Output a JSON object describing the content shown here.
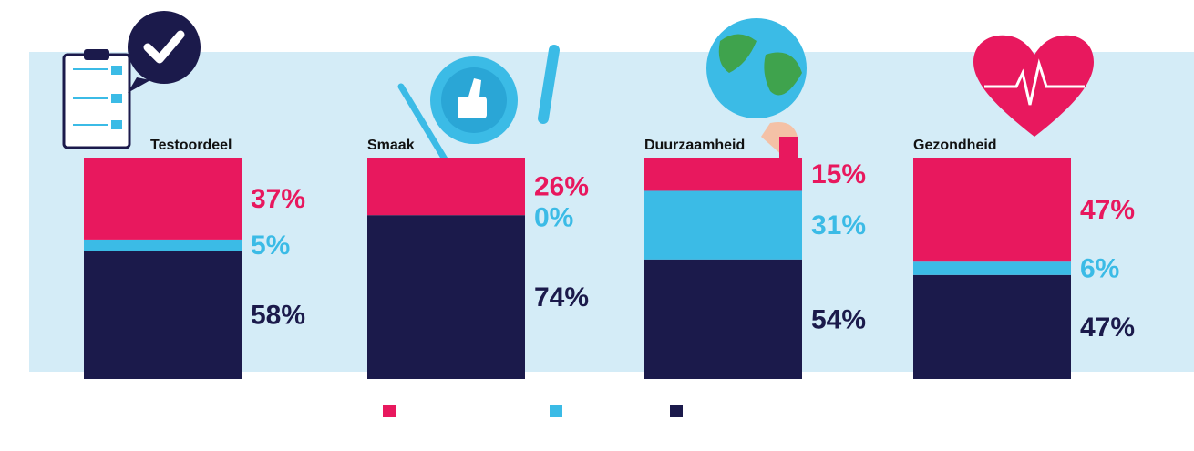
{
  "chart_data": {
    "type": "stacked-bar",
    "categories": [
      "Testoordeel",
      "Smaak",
      "Duurzaamheid",
      "Gezondheid"
    ],
    "ylim": [
      0,
      100
    ],
    "series": [
      {
        "color": "#1b1a4b",
        "values": [
          58,
          74,
          54,
          47
        ],
        "value_labels": [
          "58%",
          "74%",
          "54%",
          "47%"
        ]
      },
      {
        "color": "#3bbbe6",
        "values": [
          5,
          0,
          31,
          6
        ],
        "value_labels": [
          "5%",
          "0%",
          "31%",
          "6%"
        ]
      },
      {
        "color": "#e8185e",
        "values": [
          37,
          26,
          15,
          47
        ],
        "value_labels": [
          "37%",
          "26%",
          "15%",
          "47%"
        ]
      }
    ]
  }
}
